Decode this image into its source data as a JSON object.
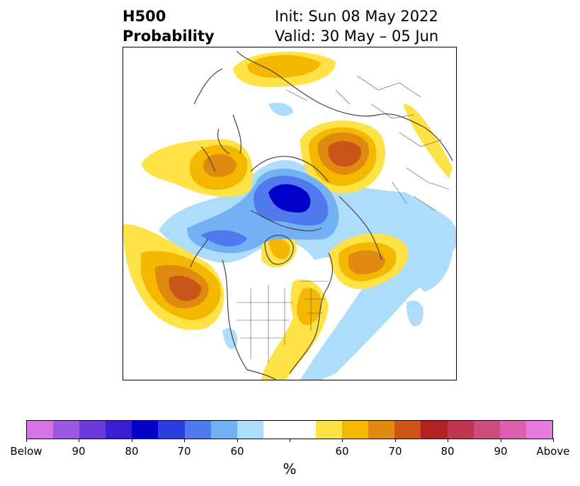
{
  "title": {
    "left_line1": "H500",
    "left_line2": "Probability",
    "right_line1": "Init: Sun 08 May 2022",
    "right_line2": "Valid: 30 May – 05 Jun"
  },
  "colorbar": {
    "label": "%",
    "colors": [
      "#d673e6",
      "#9b59e0",
      "#6a3ad8",
      "#3a1fd0",
      "#0000c8",
      "#2a3ee0",
      "#4f79ec",
      "#74b1f4",
      "#aedcfb",
      "#ffffff",
      "#ffffff",
      "#ffe246",
      "#f5b800",
      "#e08a12",
      "#c95518",
      "#b22222",
      "#c03550",
      "#cc4d7c",
      "#db60b0",
      "#e77ce0"
    ],
    "tick_labels": [
      "Below",
      "90",
      "80",
      "70",
      "60",
      "",
      "60",
      "70",
      "80",
      "90",
      "Above"
    ]
  },
  "map_colors": {
    "below_60": "#aedcfb",
    "below_70": "#74b1f4",
    "below_80": "#4f79ec",
    "below_90": "#0000c8",
    "above_60": "#ffe246",
    "above_70": "#f5b800",
    "above_80": "#e08a12",
    "above_90": "#c95518"
  }
}
